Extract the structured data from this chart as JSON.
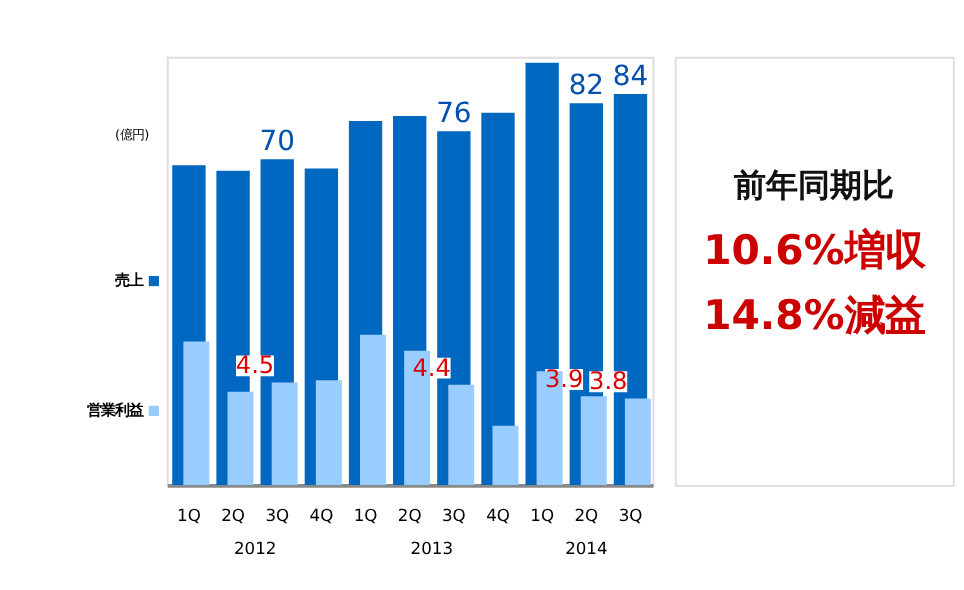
{
  "chart_data": {
    "type": "bar",
    "ylabel": "(億円)",
    "categories": [
      "1Q",
      "2Q",
      "3Q",
      "4Q",
      "1Q",
      "2Q",
      "3Q",
      "4Q",
      "1Q",
      "2Q",
      "3Q"
    ],
    "series": [
      {
        "name": "売上",
        "color": "#0068c0",
        "values": [
          68.7,
          67.5,
          70,
          68,
          78.2,
          79.3,
          76,
          80,
          90.7,
          82,
          84
        ],
        "value_labels": [
          null,
          null,
          "70",
          null,
          null,
          null,
          "76",
          null,
          null,
          "82",
          "84"
        ]
      },
      {
        "name": "営業利益",
        "color": "#99ccff",
        "axis": "y2",
        "values": [
          6.3,
          4.1,
          4.5,
          4.6,
          6.6,
          5.9,
          4.4,
          2.6,
          5.0,
          3.9,
          3.8
        ],
        "value_labels": [
          null,
          null,
          "4.5",
          null,
          null,
          null,
          "4.4",
          null,
          null,
          "3.9",
          "3.8"
        ]
      }
    ],
    "ylim": [
      0,
      92
    ],
    "y2lim": [
      0,
      18.8
    ],
    "tick_labels": "x",
    "legend": "left",
    "grid": false,
    "annotations": [
      "2012",
      "2013",
      "2014",
      "前年同期比",
      "10.6%増収",
      "14.8%減益"
    ]
  }
}
